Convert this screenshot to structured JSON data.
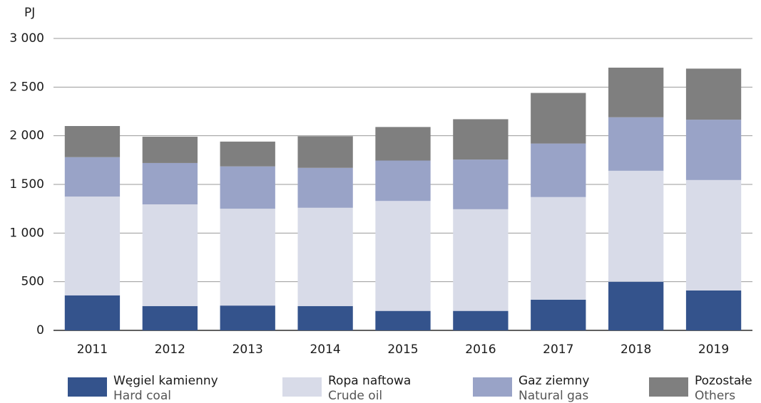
{
  "chart_data": {
    "type": "stacked_bar",
    "y_unit": "PJ",
    "categories": [
      "2011",
      "2012",
      "2013",
      "2014",
      "2015",
      "2016",
      "2017",
      "2018",
      "2019"
    ],
    "series": [
      {
        "name": "Węgiel kamienny",
        "name_en": "Hard coal",
        "color": "#34538c",
        "values": [
          360,
          250,
          255,
          250,
          200,
          200,
          315,
          500,
          410
        ]
      },
      {
        "name": "Ropa naftowa",
        "name_en": "Crude oil",
        "color": "#d8dbe8",
        "values": [
          1015,
          1045,
          995,
          1010,
          1130,
          1045,
          1055,
          1140,
          1135
        ]
      },
      {
        "name": "Gaz ziemny",
        "name_en": "Natural gas",
        "color": "#99a3c7",
        "values": [
          405,
          425,
          435,
          410,
          415,
          510,
          550,
          550,
          620
        ]
      },
      {
        "name": "Pozostałe",
        "name_en": "Others",
        "color": "#7f7f7f",
        "values": [
          320,
          270,
          255,
          325,
          345,
          415,
          520,
          510,
          525
        ]
      }
    ],
    "ylim": [
      0,
      3000
    ],
    "yticks": [
      0,
      500,
      {
        "value": 1000,
        "label": "1 000"
      },
      {
        "value": 1500,
        "label": "1 500"
      },
      {
        "value": 2000,
        "label": "2 000"
      },
      {
        "value": 2500,
        "label": "2 500"
      },
      {
        "value": 3000,
        "label": "3 000"
      }
    ],
    "grid": true
  }
}
